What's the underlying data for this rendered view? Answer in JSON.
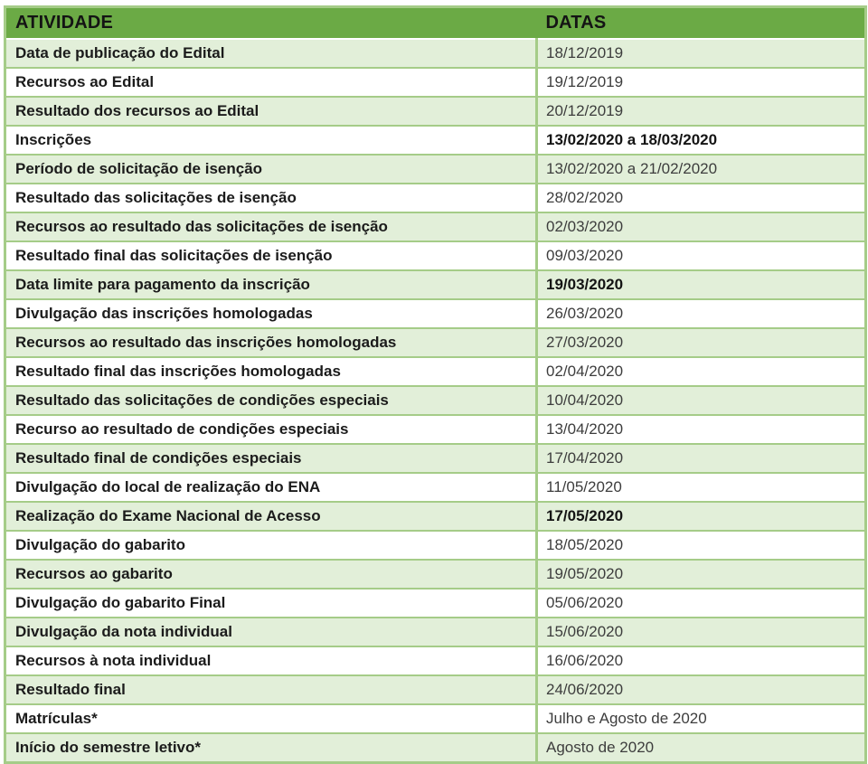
{
  "table": {
    "headers": {
      "activity": "ATIVIDADE",
      "dates": "DATAS"
    },
    "rows": [
      {
        "activity": "Data de publicação do Edital",
        "date": "18/12/2019",
        "bold_date": false
      },
      {
        "activity": "Recursos ao Edital",
        "date": "19/12/2019",
        "bold_date": false
      },
      {
        "activity": "Resultado dos recursos ao Edital",
        "date": "20/12/2019",
        "bold_date": false
      },
      {
        "activity": "Inscrições",
        "date": "13/02/2020 a 18/03/2020",
        "bold_date": true
      },
      {
        "activity": "Período de solicitação de isenção",
        "date": "13/02/2020 a 21/02/2020",
        "bold_date": false
      },
      {
        "activity": "Resultado das solicitações de isenção",
        "date": "28/02/2020",
        "bold_date": false
      },
      {
        "activity": "Recursos ao resultado das solicitações de isenção",
        "date": "02/03/2020",
        "bold_date": false
      },
      {
        "activity": "Resultado final das solicitações de isenção",
        "date": "09/03/2020",
        "bold_date": false
      },
      {
        "activity": "Data limite para pagamento da inscrição",
        "date": "19/03/2020",
        "bold_date": true
      },
      {
        "activity": "Divulgação das inscrições homologadas",
        "date": "26/03/2020",
        "bold_date": false
      },
      {
        "activity": "Recursos ao resultado das inscrições homologadas",
        "date": "27/03/2020",
        "bold_date": false
      },
      {
        "activity": "Resultado final das inscrições homologadas",
        "date": "02/04/2020",
        "bold_date": false
      },
      {
        "activity": "Resultado das solicitações de condições especiais",
        "date": "10/04/2020",
        "bold_date": false
      },
      {
        "activity": "Recurso ao resultado de condições especiais",
        "date": "13/04/2020",
        "bold_date": false
      },
      {
        "activity": "Resultado final de condições especiais",
        "date": "17/04/2020",
        "bold_date": false
      },
      {
        "activity": "Divulgação do local de realização do ENA",
        "date": "11/05/2020",
        "bold_date": false
      },
      {
        "activity": "Realização do Exame Nacional de Acesso",
        "date": "17/05/2020",
        "bold_date": true
      },
      {
        "activity": "Divulgação do gabarito",
        "date": "18/05/2020",
        "bold_date": false
      },
      {
        "activity": "Recursos ao gabarito",
        "date": "19/05/2020",
        "bold_date": false
      },
      {
        "activity": "Divulgação do gabarito Final",
        "date": "05/06/2020",
        "bold_date": false
      },
      {
        "activity": "Divulgação da nota individual",
        "date": "15/06/2020",
        "bold_date": false
      },
      {
        "activity": "Recursos à nota individual",
        "date": "16/06/2020",
        "bold_date": false
      },
      {
        "activity": "Resultado final",
        "date": "24/06/2020",
        "bold_date": false
      },
      {
        "activity": "Matrículas*",
        "date": "Julho e Agosto de 2020",
        "bold_date": false
      },
      {
        "activity": "Início do semestre letivo*",
        "date": "Agosto de 2020",
        "bold_date": false
      }
    ]
  },
  "colors": {
    "header_bg": "#6baa45",
    "row_alt_bg": "#e2efd9",
    "row_bg": "#ffffff",
    "border_green": "#a5cc88",
    "activity_text": "#1b1b1b",
    "date_text": "#3d3d3d"
  }
}
